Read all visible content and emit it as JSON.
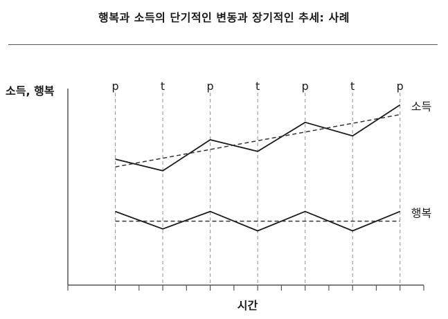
{
  "title": "행복과 소득의 단기적인 변동과 장기적인 추세: 사례",
  "chart_data": {
    "type": "line",
    "title": "행복과 소득의 단기적인 변동과 장기적인 추세: 사례",
    "ylabel": "소득, 행복",
    "xlabel": "시간",
    "x": [
      1,
      2,
      3,
      4,
      5,
      6,
      7
    ],
    "phase_labels": [
      "p",
      "t",
      "p",
      "t",
      "p",
      "t",
      "p"
    ],
    "xlim": [
      0,
      7.5
    ],
    "ylim": [
      0,
      10
    ],
    "x_ticks": [
      0,
      1,
      1.5,
      2,
      2.5,
      3,
      3.5,
      4,
      4.5,
      5,
      5.5,
      6,
      6.5,
      7,
      7.5
    ],
    "series": [
      {
        "name": "소득",
        "style": "solid",
        "color": "#1a1a1a",
        "values": [
          6.5,
          5.9,
          7.5,
          6.9,
          8.4,
          7.7,
          9.3
        ]
      },
      {
        "style": "dashed",
        "color": "#333333",
        "values": [
          6.1,
          6.55,
          7.0,
          7.45,
          7.9,
          8.35,
          8.8
        ]
      },
      {
        "name": "행복",
        "style": "solid",
        "color": "#1a1a1a",
        "values": [
          3.8,
          2.9,
          3.8,
          2.8,
          3.8,
          2.8,
          3.8
        ]
      },
      {
        "style": "dashed",
        "color": "#333333",
        "values": [
          3.3,
          3.3,
          3.3,
          3.3,
          3.3,
          3.3,
          3.3
        ]
      }
    ]
  }
}
